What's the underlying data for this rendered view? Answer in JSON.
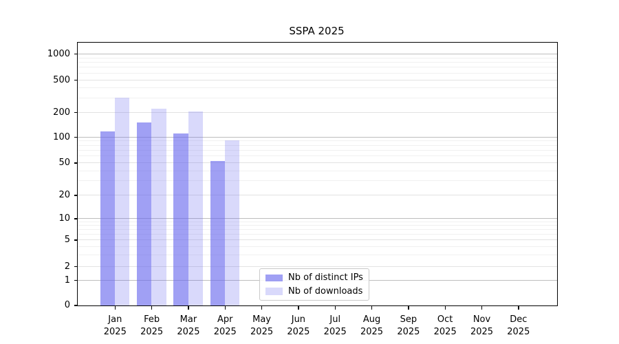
{
  "title": "SSPA 2025",
  "legend": {
    "items": [
      {
        "label": "Nb of distinct IPs",
        "color": "rgba(102,102,238,0.62)"
      },
      {
        "label": "Nb of downloads",
        "color": "rgba(102,102,238,0.25)"
      }
    ]
  },
  "x_axis": {
    "month_labels": [
      "Jan",
      "Feb",
      "Mar",
      "Apr",
      "May",
      "Jun",
      "Jul",
      "Aug",
      "Sep",
      "Oct",
      "Nov",
      "Dec"
    ],
    "year": "2025"
  },
  "y_axis": {
    "tick_labels": [
      "1000",
      "500",
      "200",
      "100",
      "50",
      "20",
      "10",
      "5",
      "2",
      "1",
      "0"
    ]
  },
  "chart_data": {
    "type": "bar",
    "title": "SSPA 2025",
    "categories": [
      "Jan 2025",
      "Feb 2025",
      "Mar 2025",
      "Apr 2025",
      "May 2025",
      "Jun 2025",
      "Jul 2025",
      "Aug 2025",
      "Sep 2025",
      "Oct 2025",
      "Nov 2025",
      "Dec 2025"
    ],
    "series": [
      {
        "name": "Nb of distinct IPs",
        "values": [
          118,
          150,
          110,
          53,
          0,
          0,
          0,
          0,
          0,
          0,
          0,
          0
        ]
      },
      {
        "name": "Nb of downloads",
        "values": [
          300,
          220,
          205,
          92,
          0,
          0,
          0,
          0,
          0,
          0,
          0,
          0
        ]
      }
    ],
    "yscale": "symlog",
    "yticks": [
      0,
      1,
      2,
      5,
      10,
      20,
      50,
      100,
      200,
      500,
      1000
    ],
    "ylim": [
      0,
      1400
    ],
    "grid": "horizontal, major and minor",
    "legend_position": "lower center",
    "bar_colors": {
      "distinct_ips": "rgba(102,102,238,0.62)",
      "downloads": "rgba(102,102,238,0.25)"
    }
  }
}
